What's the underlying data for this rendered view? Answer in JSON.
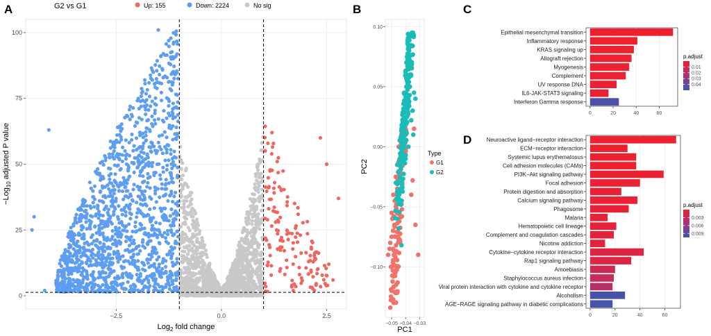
{
  "panels": {
    "a": "A",
    "b": "B",
    "c": "C",
    "d": "D"
  },
  "colors": {
    "up": "#f0665f",
    "down": "#5e9ef2",
    "nosig": "#c8c8c8",
    "g1": "#f0736a",
    "g2": "#19bcb6",
    "padj_low": "#f0202c",
    "padj_high": "#3659b0"
  },
  "chart_data": [
    {
      "id": "A",
      "type": "scatter",
      "title": "G2 vs G1",
      "legend": [
        {
          "label": "Up: 155",
          "color": "#f0665f"
        },
        {
          "label": "Down: 2224",
          "color": "#5e9ef2"
        },
        {
          "label": "No sig",
          "color": "#c8c8c8"
        }
      ],
      "xlabel": "Log2 fold change",
      "xlabel_parts": {
        "pre": "Log",
        "sub": "2",
        "post": " fold change"
      },
      "ylabel": "-Log10 adjusted P value",
      "ylabel_parts": {
        "pre": "−Log",
        "sub": "10",
        "post": " adjusted P value"
      },
      "xlim": [
        -4.65,
        2.97
      ],
      "ylim": [
        -5,
        105
      ],
      "xticks": [
        -2.5,
        0.0,
        2.5
      ],
      "xtick_labels": [
        "−2.5",
        "0.0",
        "2.5"
      ],
      "yticks": [
        0,
        25,
        50,
        75,
        100
      ],
      "ytick_labels": [
        "0",
        "25",
        "50",
        "75",
        "100"
      ],
      "vlines": [
        -1,
        1
      ],
      "hline": 1.3,
      "counts": {
        "up": 155,
        "down": 2224
      },
      "highlight_points": [
        {
          "x": -1.5,
          "y": 101,
          "group": "down"
        },
        {
          "x": -4.1,
          "y": 63,
          "group": "down"
        },
        {
          "x": -4.45,
          "y": 30,
          "group": "down"
        },
        {
          "x": -4.5,
          "y": 25,
          "group": "down"
        },
        {
          "x": -4.2,
          "y": 2,
          "group": "down"
        },
        {
          "x": 1.2,
          "y": 62,
          "group": "up"
        },
        {
          "x": 2.35,
          "y": 60,
          "group": "up"
        },
        {
          "x": 2.5,
          "y": 50,
          "group": "up"
        },
        {
          "x": 2.78,
          "y": 37,
          "group": "up"
        },
        {
          "x": 2.55,
          "y": 12,
          "group": "up"
        },
        {
          "x": 2.65,
          "y": 6,
          "group": "up"
        }
      ]
    },
    {
      "id": "B",
      "type": "scatter",
      "xlabel": "PC1",
      "ylabel": "PC2",
      "xlim": [
        -0.0545,
        -0.0267
      ],
      "ylim": [
        -0.142,
        0.106
      ],
      "xticks": [
        -0.05,
        -0.04,
        -0.03
      ],
      "xtick_labels": [
        "−0.05",
        "−0.04",
        "−0.03"
      ],
      "yticks": [
        -0.1,
        -0.05,
        0.0,
        0.05,
        0.1
      ],
      "ytick_labels": [
        "−0.10",
        "−0.05",
        "0.00",
        "0.05",
        "0.10"
      ],
      "legend_title": "Type",
      "groups": [
        {
          "name": "G1",
          "color": "#f0736a"
        },
        {
          "name": "G2",
          "color": "#19bcb6"
        }
      ],
      "series": [
        {
          "name": "G1",
          "points": [
            [
              -0.051,
              -0.134
            ],
            [
              -0.05,
              -0.12
            ],
            [
              -0.0478,
              -0.121
            ],
            [
              -0.0492,
              -0.103
            ],
            [
              -0.0505,
              -0.1
            ],
            [
              -0.0515,
              -0.085
            ],
            [
              -0.051,
              -0.08
            ],
            [
              -0.0525,
              -0.09
            ],
            [
              -0.05,
              -0.075
            ],
            [
              -0.049,
              -0.07
            ],
            [
              -0.0485,
              -0.058
            ],
            [
              -0.0495,
              -0.06
            ],
            [
              -0.05,
              -0.055
            ],
            [
              -0.0478,
              -0.045
            ],
            [
              -0.0488,
              -0.04
            ],
            [
              -0.046,
              -0.035
            ],
            [
              -0.045,
              -0.03
            ],
            [
              -0.047,
              -0.025
            ],
            [
              -0.044,
              -0.02
            ],
            [
              -0.043,
              -0.01
            ],
            [
              -0.046,
              -0.015
            ],
            [
              -0.045,
              0.0
            ],
            [
              -0.043,
              0.01
            ],
            [
              -0.041,
              -0.005
            ],
            [
              -0.04,
              0.015
            ],
            [
              -0.042,
              0.02
            ],
            [
              -0.044,
              0.005
            ],
            [
              -0.034,
              0.015
            ],
            [
              -0.035,
              -0.028
            ],
            [
              -0.036,
              -0.04
            ],
            [
              -0.033,
              -0.065
            ],
            [
              -0.031,
              -0.09
            ],
            [
              -0.047,
              -0.05
            ],
            [
              -0.048,
              -0.065
            ],
            [
              -0.0465,
              -0.04
            ],
            [
              -0.049,
              -0.085
            ]
          ]
        },
        {
          "name": "G2",
          "points": [
            [
              -0.0355,
              0.095
            ],
            [
              -0.036,
              0.092
            ],
            [
              -0.0375,
              0.08
            ],
            [
              -0.039,
              0.075
            ],
            [
              -0.0365,
              0.07
            ],
            [
              -0.038,
              0.068
            ],
            [
              -0.04,
              0.062
            ],
            [
              -0.037,
              0.06
            ],
            [
              -0.039,
              0.055
            ],
            [
              -0.0395,
              0.05
            ],
            [
              -0.041,
              0.045
            ],
            [
              -0.038,
              0.04
            ],
            [
              -0.04,
              0.035
            ],
            [
              -0.0415,
              0.03
            ],
            [
              -0.039,
              0.025
            ],
            [
              -0.042,
              0.02
            ],
            [
              -0.04,
              0.018
            ],
            [
              -0.043,
              0.015
            ],
            [
              -0.041,
              0.01
            ],
            [
              -0.038,
              0.0
            ],
            [
              -0.044,
              0.005
            ],
            [
              -0.042,
              -0.002
            ],
            [
              -0.04,
              -0.01
            ],
            [
              -0.046,
              -0.015
            ],
            [
              -0.044,
              -0.025
            ],
            [
              -0.043,
              -0.035
            ],
            [
              -0.047,
              -0.03
            ],
            [
              -0.045,
              -0.045
            ],
            [
              -0.046,
              -0.06
            ],
            [
              -0.045,
              -0.068
            ],
            [
              -0.043,
              -0.082
            ],
            [
              -0.034,
              0.045
            ],
            [
              -0.033,
              0.04
            ],
            [
              -0.035,
              0.03
            ],
            [
              -0.036,
              0.022
            ],
            [
              -0.0345,
              0.01
            ],
            [
              -0.037,
              0.05
            ],
            [
              -0.0385,
              0.065
            ],
            [
              -0.0405,
              0.03
            ],
            [
              -0.042,
              0.01
            ]
          ]
        }
      ]
    },
    {
      "id": "C",
      "type": "bar",
      "orientation": "horizontal",
      "categories": [
        "Epithelial mesenchymal transition",
        "Inflammatory response",
        "KRAS signaling up",
        "Allograft rejection",
        "Myogenesis",
        "Complement",
        "UV response DNA",
        "IL6-JAK-STAT3 signaling",
        "Interferon Gamma response"
      ],
      "values": [
        72,
        41,
        38,
        36,
        34,
        31,
        23,
        16,
        25
      ],
      "padj": [
        0.0005,
        0.001,
        0.0012,
        0.0015,
        0.0015,
        0.002,
        0.002,
        0.003,
        0.045
      ],
      "xlim": [
        -3.5,
        76
      ],
      "xticks": [
        0,
        20,
        40,
        60
      ],
      "xtick_labels": [
        "0",
        "20",
        "40",
        "60"
      ],
      "legend_title": "p.adjust",
      "legend_ticks": [
        0.01,
        0.02,
        0.03,
        0.04
      ],
      "legend_tick_labels": [
        "0.01",
        "0.02",
        "0.03",
        "0.04"
      ],
      "legend_range": [
        0.0,
        0.05
      ]
    },
    {
      "id": "D",
      "type": "bar",
      "orientation": "horizontal",
      "categories": [
        "Neuroactive ligand−receptor interaction",
        "ECM−receptor interaction",
        "Systemic lupus erythematosus",
        "Cell adhesion molecules (CAMs)",
        "PI3K−Akt signaling pathway",
        "Focal adhesion",
        "Protein digestion and absorption",
        "Calcium signaling pathway",
        "Phagosome",
        "Malaria",
        "Hematopoietic cell lineage",
        "Complement and coagulation cascades",
        "Nicotine addiction",
        "Cytokine−cytokine receptor interaction",
        "Rap1 signaling pathway",
        "Amoebiasis",
        "Staphylococcus aureus infection",
        "Viral protein interaction with cytokine and cytokine receptor",
        "Alcoholism",
        "AGE−RAGE signaling pathway in diabetic complications"
      ],
      "values": [
        69,
        30,
        37,
        37,
        59,
        40,
        25,
        38,
        31,
        14,
        21,
        19,
        12,
        43,
        33,
        20,
        19,
        18,
        28,
        18
      ],
      "padj": [
        0.0002,
        0.0003,
        0.0003,
        0.0003,
        0.0004,
        0.0004,
        0.0005,
        0.0004,
        0.0005,
        0.0008,
        0.0008,
        0.0009,
        0.0011,
        0.0015,
        0.0015,
        0.0025,
        0.0032,
        0.0042,
        0.0098,
        0.0098
      ],
      "xlim": [
        -3.3,
        72.5
      ],
      "xticks": [
        0,
        20,
        40,
        60
      ],
      "xtick_labels": [
        "0",
        "20",
        "40",
        "60"
      ],
      "legend_title": "p.adjust",
      "legend_ticks": [
        0.003,
        0.006,
        0.009
      ],
      "legend_tick_labels": [
        "0.003",
        "0.006",
        "0.009"
      ],
      "legend_range": [
        0.0,
        0.0105
      ]
    }
  ]
}
